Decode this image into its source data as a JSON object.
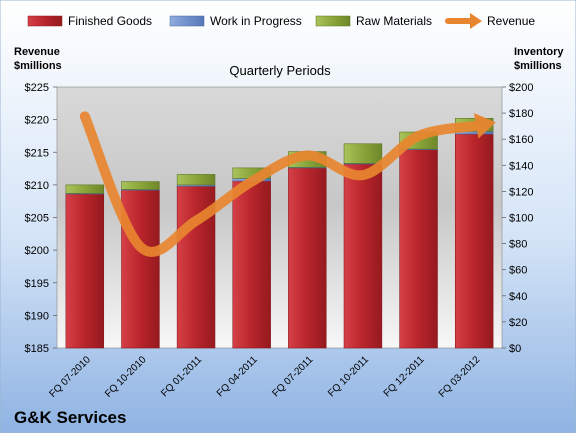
{
  "company": "G&K Services",
  "chart_data": {
    "type": "bar",
    "title": "Quarterly Periods",
    "y_left_label_line1": "Revenue",
    "y_left_label_line2": "$millions",
    "y_right_label_line1": "Inventory",
    "y_right_label_line2": "$millions",
    "categories": [
      "FQ 07-2010",
      "FQ 10-2010",
      "FQ 01-2011",
      "FQ 04-2011",
      "FQ 07-2011",
      "FQ 10-2011",
      "FQ 12-2011",
      "FQ 03-2012"
    ],
    "y_left_ticks": [
      "$185",
      "$190",
      "$195",
      "$200",
      "$205",
      "$210",
      "$215",
      "$220",
      "$225"
    ],
    "y_left_lim": [
      185,
      225
    ],
    "y_right_ticks": [
      "$0",
      "$20",
      "$40",
      "$60",
      "$80",
      "$100",
      "$120",
      "$140",
      "$160",
      "$180",
      "$200"
    ],
    "y_right_lim": [
      0,
      200
    ],
    "stacked": true,
    "bar_series": [
      {
        "name": "Finished Goods",
        "color": "#c0272d",
        "values": [
          118,
          121,
          124,
          128,
          138,
          141,
          152,
          164
        ]
      },
      {
        "name": "Work in Progress",
        "color": "#6d8fd1",
        "values": [
          0.5,
          0.5,
          1,
          2,
          0.5,
          0.5,
          0.5,
          2
        ]
      },
      {
        "name": "Raw Materials",
        "color": "#8faa3f",
        "values": [
          6.5,
          6,
          8,
          8,
          12,
          15,
          13,
          10
        ]
      }
    ],
    "line_series": {
      "name": "Revenue",
      "color": "#e8852f",
      "axis": "left",
      "values": [
        220.5,
        200.5,
        204.5,
        210.5,
        214.5,
        211.5,
        217.5,
        219
      ]
    },
    "legend_position": "top",
    "grid": false
  }
}
